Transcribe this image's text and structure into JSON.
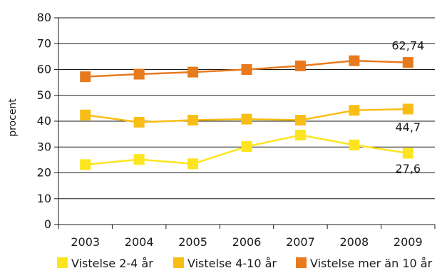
{
  "chart_data": {
    "type": "line",
    "title": "",
    "xlabel": "",
    "ylabel": "procent",
    "categories": [
      "2003",
      "2004",
      "2005",
      "2006",
      "2007",
      "2008",
      "2009"
    ],
    "ylim": [
      0,
      80
    ],
    "yticks": [
      0,
      10,
      20,
      30,
      40,
      50,
      60,
      70,
      80
    ],
    "grid": true,
    "legend_position": "bottom",
    "series": [
      {
        "name": "Vistelse 2-4 år",
        "color": "#FCE51E",
        "values": [
          23.2,
          25.2,
          23.5,
          30.2,
          34.6,
          30.8,
          27.6
        ],
        "end_label": "27,6"
      },
      {
        "name": "Vistelse 4-10 år",
        "color": "#F9BE15",
        "values": [
          42.4,
          39.6,
          40.4,
          40.8,
          40.4,
          44.2,
          44.7
        ],
        "end_label": "44,7"
      },
      {
        "name": "Vistelse mer än 10 år",
        "color": "#E87A1E",
        "values": [
          57.2,
          58.2,
          59.0,
          60.0,
          61.4,
          63.4,
          62.74
        ],
        "end_label": "62,74"
      }
    ]
  }
}
